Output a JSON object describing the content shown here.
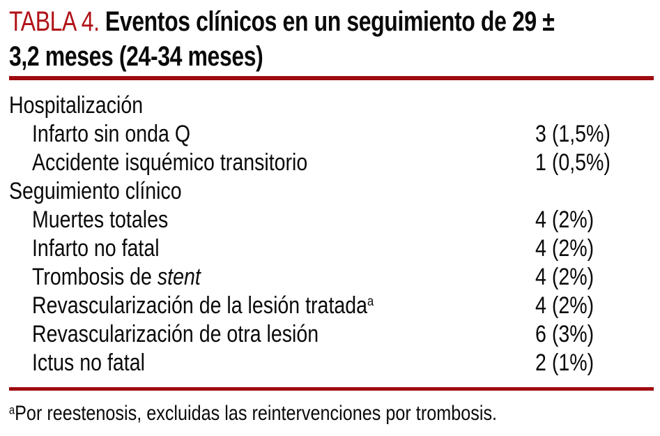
{
  "title": {
    "label": "TABLA 4.",
    "line1": "Eventos clínicos en un seguimiento de 29 ±",
    "line2": "3,2 meses (24-34 meses)"
  },
  "colors": {
    "accent_red": "#B01116",
    "rule_red": "#9E0B10"
  },
  "table": {
    "rows": [
      {
        "label": "Hospitalización",
        "type": "section"
      },
      {
        "label": "Infarto sin onda Q",
        "value": "3 (1,5%)",
        "type": "item"
      },
      {
        "label": "Accidente isquémico transitorio",
        "value": "1 (0,5%)",
        "type": "item"
      },
      {
        "label": "Seguimiento clínico",
        "type": "section"
      },
      {
        "label": "Muertes totales",
        "value": "4 (2%)",
        "type": "item"
      },
      {
        "label": "Infarto no fatal",
        "value": "4 (2%)",
        "type": "item"
      },
      {
        "label": "Trombosis de ",
        "italic": "stent",
        "value": "4 (2%)",
        "type": "item"
      },
      {
        "label": "Revascularización de la lesión tratada",
        "sup": "a",
        "value": "4 (2%)",
        "type": "item"
      },
      {
        "label": "Revascularización de otra lesión",
        "value": "6 (3%)",
        "type": "item"
      },
      {
        "label": "Ictus no fatal",
        "value": "2 (1%)",
        "type": "item"
      }
    ]
  },
  "footnote": {
    "sup": "a",
    "text": "Por reestenosis, excluidas las reintervenciones por trombosis."
  }
}
